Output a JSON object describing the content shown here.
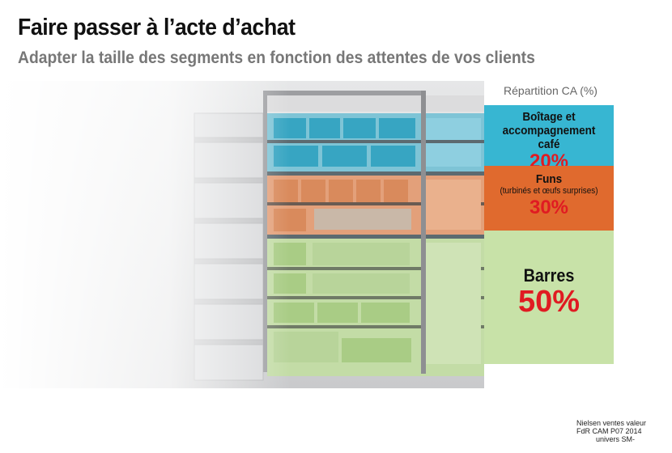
{
  "header": {
    "title": "Faire passer à l’acte d’achat",
    "subtitle": "Adapter la taille des segments en fonction des attentes de vos clients"
  },
  "panel": {
    "column_title": "Répartition CA (%)",
    "segments": [
      {
        "name_line1": "Boîtage et",
        "name_line2": "accompagnement café",
        "sub": "",
        "percent": "20%",
        "color": "#37b6d2"
      },
      {
        "name_line1": "Funs",
        "name_line2": "",
        "sub": "(turbinés et œufs surprises)",
        "percent": "30%",
        "color": "#e06a2e"
      },
      {
        "name_line1": "Barres",
        "name_line2": "",
        "sub": "",
        "percent": "50%",
        "color": "#c8e2a8"
      }
    ]
  },
  "source": {
    "line1": "Nielsen  ventes valeur",
    "line2": "FdR CAM P07 2014",
    "line3": "univers SM-"
  },
  "colors": {
    "accent_red": "#e01b22",
    "title": "#111111",
    "subtitle": "#777777"
  }
}
